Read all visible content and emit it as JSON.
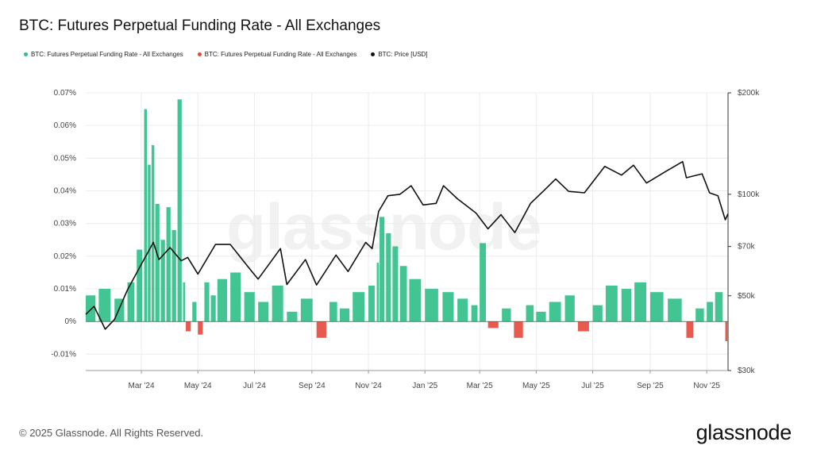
{
  "title": "BTC: Futures Perpetual Funding Rate - All Exchanges",
  "legend": {
    "items": [
      {
        "label": "BTC: Futures Perpetual Funding Rate - All Exchanges",
        "color": "#2fbf87"
      },
      {
        "label": "BTC: Futures Perpetual Funding Rate - All Exchanges",
        "color": "#e5483b"
      },
      {
        "label": "BTC: Price [USD]",
        "color": "#111111"
      }
    ]
  },
  "footer": {
    "copyright": "© 2025 Glassnode. All Rights Reserved.",
    "brand": "glassnode",
    "watermark": "glassnode"
  },
  "chart_data": {
    "type": "bar",
    "x_start": "2024-01-01",
    "x_end": "2025-11-24",
    "x_ticks": [
      {
        "date": "2024-03-01",
        "label": "Mar '24"
      },
      {
        "date": "2024-05-01",
        "label": "May '24"
      },
      {
        "date": "2024-07-01",
        "label": "Jul '24"
      },
      {
        "date": "2024-09-01",
        "label": "Sep '24"
      },
      {
        "date": "2024-11-01",
        "label": "Nov '24"
      },
      {
        "date": "2025-01-01",
        "label": "Jan '25"
      },
      {
        "date": "2025-03-01",
        "label": "Mar '25"
      },
      {
        "date": "2025-05-01",
        "label": "May '25"
      },
      {
        "date": "2025-07-01",
        "label": "Jul '25"
      },
      {
        "date": "2025-09-01",
        "label": "Sep '25"
      },
      {
        "date": "2025-11-01",
        "label": "Nov '25"
      }
    ],
    "y_left": {
      "ylim": [
        -0.015,
        0.07
      ],
      "ticks": [
        {
          "value": 0.07,
          "label": "0.07%"
        },
        {
          "value": 0.06,
          "label": "0.06%"
        },
        {
          "value": 0.05,
          "label": "0.05%"
        },
        {
          "value": 0.04,
          "label": "0.04%"
        },
        {
          "value": 0.03,
          "label": "0.03%"
        },
        {
          "value": 0.02,
          "label": "0.02%"
        },
        {
          "value": 0.01,
          "label": "0.01%"
        },
        {
          "value": 0,
          "label": "0%"
        },
        {
          "value": -0.01,
          "label": "-0.01%"
        }
      ]
    },
    "y_right": {
      "scale": "log",
      "ylim": [
        30000,
        200000
      ],
      "ticks": [
        {
          "value": 200000,
          "label": "$200k"
        },
        {
          "value": 100000,
          "label": "$100k"
        },
        {
          "value": 70000,
          "label": "$70k"
        },
        {
          "value": 50000,
          "label": "$50k"
        },
        {
          "value": 30000,
          "label": "$30k"
        }
      ]
    },
    "series": [
      {
        "name": "BTC: Futures Perpetual Funding Rate - All Exchanges",
        "kind": "funding_rate_bars",
        "positive_color": "#2fbf87",
        "negative_color": "#e5483b",
        "points": [
          [
            "2024-01-01",
            0.008
          ],
          [
            "2024-01-15",
            0.01
          ],
          [
            "2024-02-01",
            0.007
          ],
          [
            "2024-02-15",
            0.012
          ],
          [
            "2024-02-25",
            0.022
          ],
          [
            "2024-03-04",
            0.065
          ],
          [
            "2024-03-08",
            0.048
          ],
          [
            "2024-03-12",
            0.054
          ],
          [
            "2024-03-16",
            0.036
          ],
          [
            "2024-03-22",
            0.025
          ],
          [
            "2024-03-28",
            0.035
          ],
          [
            "2024-04-03",
            0.028
          ],
          [
            "2024-04-09",
            0.068
          ],
          [
            "2024-04-15",
            0.012
          ],
          [
            "2024-04-18",
            -0.003
          ],
          [
            "2024-04-25",
            0.006
          ],
          [
            "2024-05-01",
            -0.004
          ],
          [
            "2024-05-08",
            0.012
          ],
          [
            "2024-05-15",
            0.008
          ],
          [
            "2024-05-22",
            0.013
          ],
          [
            "2024-06-05",
            0.015
          ],
          [
            "2024-06-20",
            0.009
          ],
          [
            "2024-07-05",
            0.006
          ],
          [
            "2024-07-20",
            0.011
          ],
          [
            "2024-08-05",
            0.003
          ],
          [
            "2024-08-20",
            0.007
          ],
          [
            "2024-09-06",
            -0.005
          ],
          [
            "2024-09-20",
            0.006
          ],
          [
            "2024-10-01",
            0.004
          ],
          [
            "2024-10-15",
            0.009
          ],
          [
            "2024-11-01",
            0.011
          ],
          [
            "2024-11-10",
            0.018
          ],
          [
            "2024-11-13",
            0.032
          ],
          [
            "2024-11-20",
            0.027
          ],
          [
            "2024-11-27",
            0.023
          ],
          [
            "2024-12-05",
            0.017
          ],
          [
            "2024-12-15",
            0.013
          ],
          [
            "2025-01-01",
            0.01
          ],
          [
            "2025-01-20",
            0.009
          ],
          [
            "2025-02-05",
            0.007
          ],
          [
            "2025-02-20",
            0.005
          ],
          [
            "2025-03-01",
            0.024
          ],
          [
            "2025-03-10",
            -0.002
          ],
          [
            "2025-03-25",
            0.004
          ],
          [
            "2025-04-07",
            -0.005
          ],
          [
            "2025-04-20",
            0.005
          ],
          [
            "2025-05-01",
            0.003
          ],
          [
            "2025-05-15",
            0.006
          ],
          [
            "2025-06-01",
            0.008
          ],
          [
            "2025-06-15",
            -0.003
          ],
          [
            "2025-07-01",
            0.005
          ],
          [
            "2025-07-15",
            0.011
          ],
          [
            "2025-08-01",
            0.01
          ],
          [
            "2025-08-15",
            0.012
          ],
          [
            "2025-09-01",
            0.009
          ],
          [
            "2025-09-20",
            0.007
          ],
          [
            "2025-10-10",
            -0.005
          ],
          [
            "2025-10-20",
            0.004
          ],
          [
            "2025-11-01",
            0.006
          ],
          [
            "2025-11-10",
            0.009
          ],
          [
            "2025-11-21",
            -0.006
          ]
        ]
      },
      {
        "name": "BTC: Price [USD]",
        "kind": "price_line",
        "axis": "right",
        "color": "#111111",
        "points": [
          [
            "2024-01-01",
            44000
          ],
          [
            "2024-01-10",
            46500
          ],
          [
            "2024-01-22",
            39800
          ],
          [
            "2024-02-01",
            42500
          ],
          [
            "2024-02-15",
            52000
          ],
          [
            "2024-03-01",
            62000
          ],
          [
            "2024-03-14",
            72000
          ],
          [
            "2024-03-20",
            64000
          ],
          [
            "2024-04-01",
            69500
          ],
          [
            "2024-04-13",
            63500
          ],
          [
            "2024-04-20",
            65000
          ],
          [
            "2024-05-01",
            58000
          ],
          [
            "2024-05-20",
            71000
          ],
          [
            "2024-06-05",
            71000
          ],
          [
            "2024-06-24",
            61000
          ],
          [
            "2024-07-05",
            56000
          ],
          [
            "2024-07-29",
            69000
          ],
          [
            "2024-08-05",
            54000
          ],
          [
            "2024-08-25",
            64000
          ],
          [
            "2024-09-06",
            53800
          ],
          [
            "2024-09-27",
            66000
          ],
          [
            "2024-10-10",
            59000
          ],
          [
            "2024-10-29",
            72000
          ],
          [
            "2024-11-05",
            69000
          ],
          [
            "2024-11-12",
            89000
          ],
          [
            "2024-11-22",
            99000
          ],
          [
            "2024-12-05",
            100000
          ],
          [
            "2024-12-17",
            106000
          ],
          [
            "2024-12-30",
            93000
          ],
          [
            "2025-01-13",
            94000
          ],
          [
            "2025-01-21",
            106000
          ],
          [
            "2025-02-05",
            97000
          ],
          [
            "2025-02-25",
            88000
          ],
          [
            "2025-03-10",
            79000
          ],
          [
            "2025-03-24",
            87000
          ],
          [
            "2025-04-08",
            77000
          ],
          [
            "2025-04-25",
            94000
          ],
          [
            "2025-05-10",
            103000
          ],
          [
            "2025-05-22",
            111000
          ],
          [
            "2025-06-05",
            102000
          ],
          [
            "2025-06-22",
            101000
          ],
          [
            "2025-07-14",
            121000
          ],
          [
            "2025-08-01",
            114000
          ],
          [
            "2025-08-14",
            122000
          ],
          [
            "2025-08-28",
            108000
          ],
          [
            "2025-09-18",
            117000
          ],
          [
            "2025-10-06",
            125000
          ],
          [
            "2025-10-10",
            112000
          ],
          [
            "2025-10-27",
            115000
          ],
          [
            "2025-11-04",
            101000
          ],
          [
            "2025-11-13",
            99000
          ],
          [
            "2025-11-21",
            84000
          ],
          [
            "2025-11-24",
            87500
          ]
        ]
      }
    ]
  }
}
